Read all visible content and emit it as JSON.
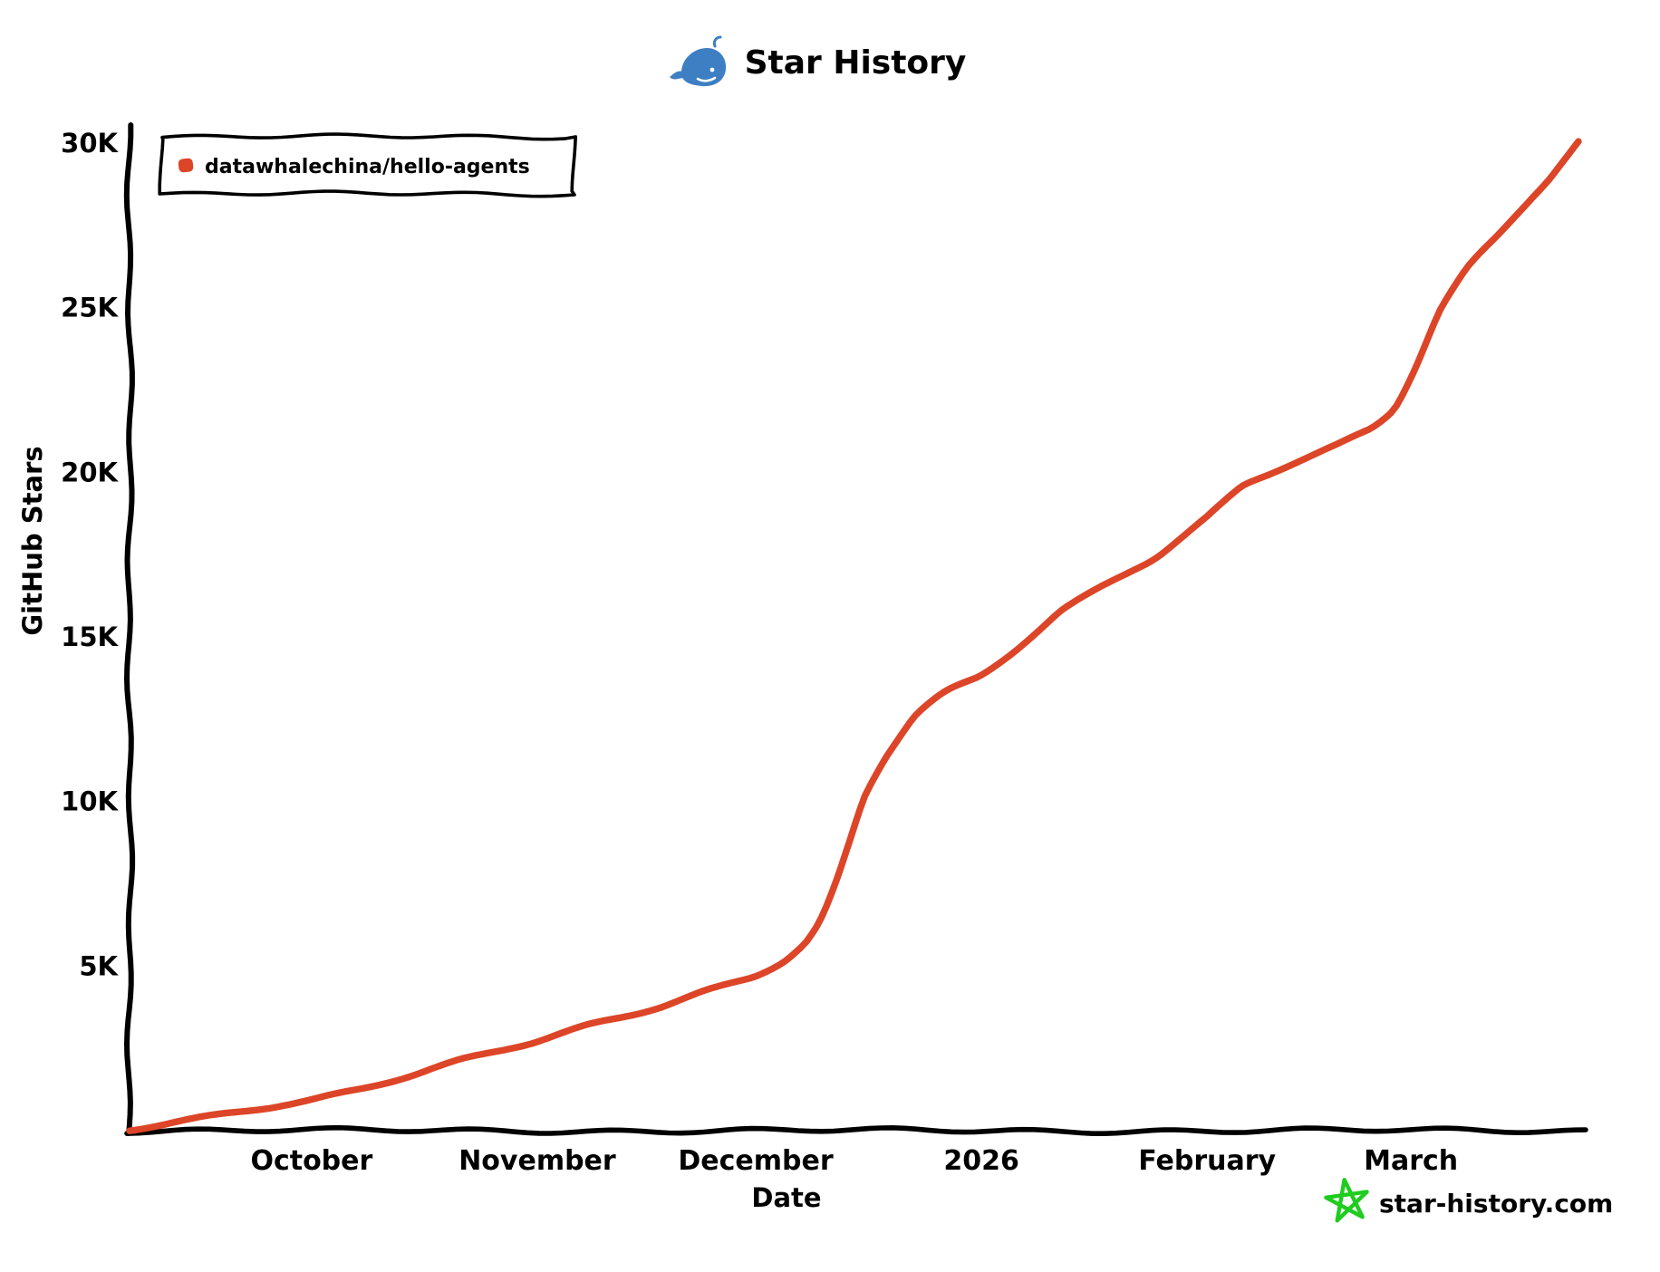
{
  "title": {
    "text": "Star History"
  },
  "axes": {
    "x_label": "Date",
    "y_label": "GitHub Stars"
  },
  "legend": {
    "items": [
      {
        "label": "datawhalechina/hello-agents",
        "color": "#dd4528"
      }
    ]
  },
  "watermark": {
    "text": "star-history.com"
  },
  "colors": {
    "line": "#dd4528",
    "axis": "#000000",
    "whale_blue": "#3d7fc2",
    "star_green": "#1fcc1f",
    "watermark_gray": "#8a8a8a"
  },
  "chart_data": {
    "type": "line",
    "title": "Star History",
    "xlabel": "Date",
    "ylabel": "GitHub Stars",
    "x_range": [
      "2025-09-06",
      "2026-03-25"
    ],
    "ylim": [
      0,
      30000
    ],
    "grid": false,
    "legend_position": "top-left",
    "y_ticks": [
      {
        "label": "5K",
        "value": 5000
      },
      {
        "label": "10K",
        "value": 10000
      },
      {
        "label": "15K",
        "value": 15000
      },
      {
        "label": "20K",
        "value": 20000
      },
      {
        "label": "25K",
        "value": 25000
      },
      {
        "label": "30K",
        "value": 30000
      }
    ],
    "x_ticks": [
      {
        "label": "October",
        "date": "2025-10-01"
      },
      {
        "label": "November",
        "date": "2025-11-01"
      },
      {
        "label": "December",
        "date": "2025-12-01"
      },
      {
        "label": "2026",
        "date": "2026-01-01"
      },
      {
        "label": "February",
        "date": "2026-02-01"
      },
      {
        "label": "March",
        "date": "2026-03-01"
      }
    ],
    "series": [
      {
        "name": "datawhalechina/hello-agents",
        "color": "#dd4528",
        "points": [
          [
            "2025-09-06",
            0
          ],
          [
            "2025-09-14",
            300
          ],
          [
            "2025-09-22",
            620
          ],
          [
            "2025-10-01",
            950
          ],
          [
            "2025-10-08",
            1300
          ],
          [
            "2025-10-15",
            1700
          ],
          [
            "2025-10-22",
            2150
          ],
          [
            "2025-11-01",
            2700
          ],
          [
            "2025-11-08",
            3200
          ],
          [
            "2025-11-14",
            3550
          ],
          [
            "2025-11-18",
            3800
          ],
          [
            "2025-11-24",
            4250
          ],
          [
            "2025-12-01",
            4700
          ],
          [
            "2025-12-05",
            5150
          ],
          [
            "2025-12-08",
            5700
          ],
          [
            "2025-12-10",
            6350
          ],
          [
            "2025-12-12",
            7450
          ],
          [
            "2025-12-14",
            8800
          ],
          [
            "2025-12-16",
            10200
          ],
          [
            "2025-12-19",
            11400
          ],
          [
            "2025-12-23",
            12700
          ],
          [
            "2025-12-27",
            13350
          ],
          [
            "2026-01-01",
            13800
          ],
          [
            "2026-01-05",
            14500
          ],
          [
            "2026-01-12",
            15850
          ],
          [
            "2026-01-19",
            16700
          ],
          [
            "2026-01-25",
            17400
          ],
          [
            "2026-02-01",
            18600
          ],
          [
            "2026-02-06",
            19600
          ],
          [
            "2026-02-13",
            20300
          ],
          [
            "2026-02-19",
            20850
          ],
          [
            "2026-02-24",
            21400
          ],
          [
            "2026-02-27",
            22000
          ],
          [
            "2026-03-02",
            23400
          ],
          [
            "2026-03-05",
            25000
          ],
          [
            "2026-03-09",
            26300
          ],
          [
            "2026-03-13",
            27200
          ],
          [
            "2026-03-17",
            28200
          ],
          [
            "2026-03-20",
            28900
          ],
          [
            "2026-03-22",
            29450
          ],
          [
            "2026-03-24",
            30000
          ]
        ]
      }
    ]
  }
}
